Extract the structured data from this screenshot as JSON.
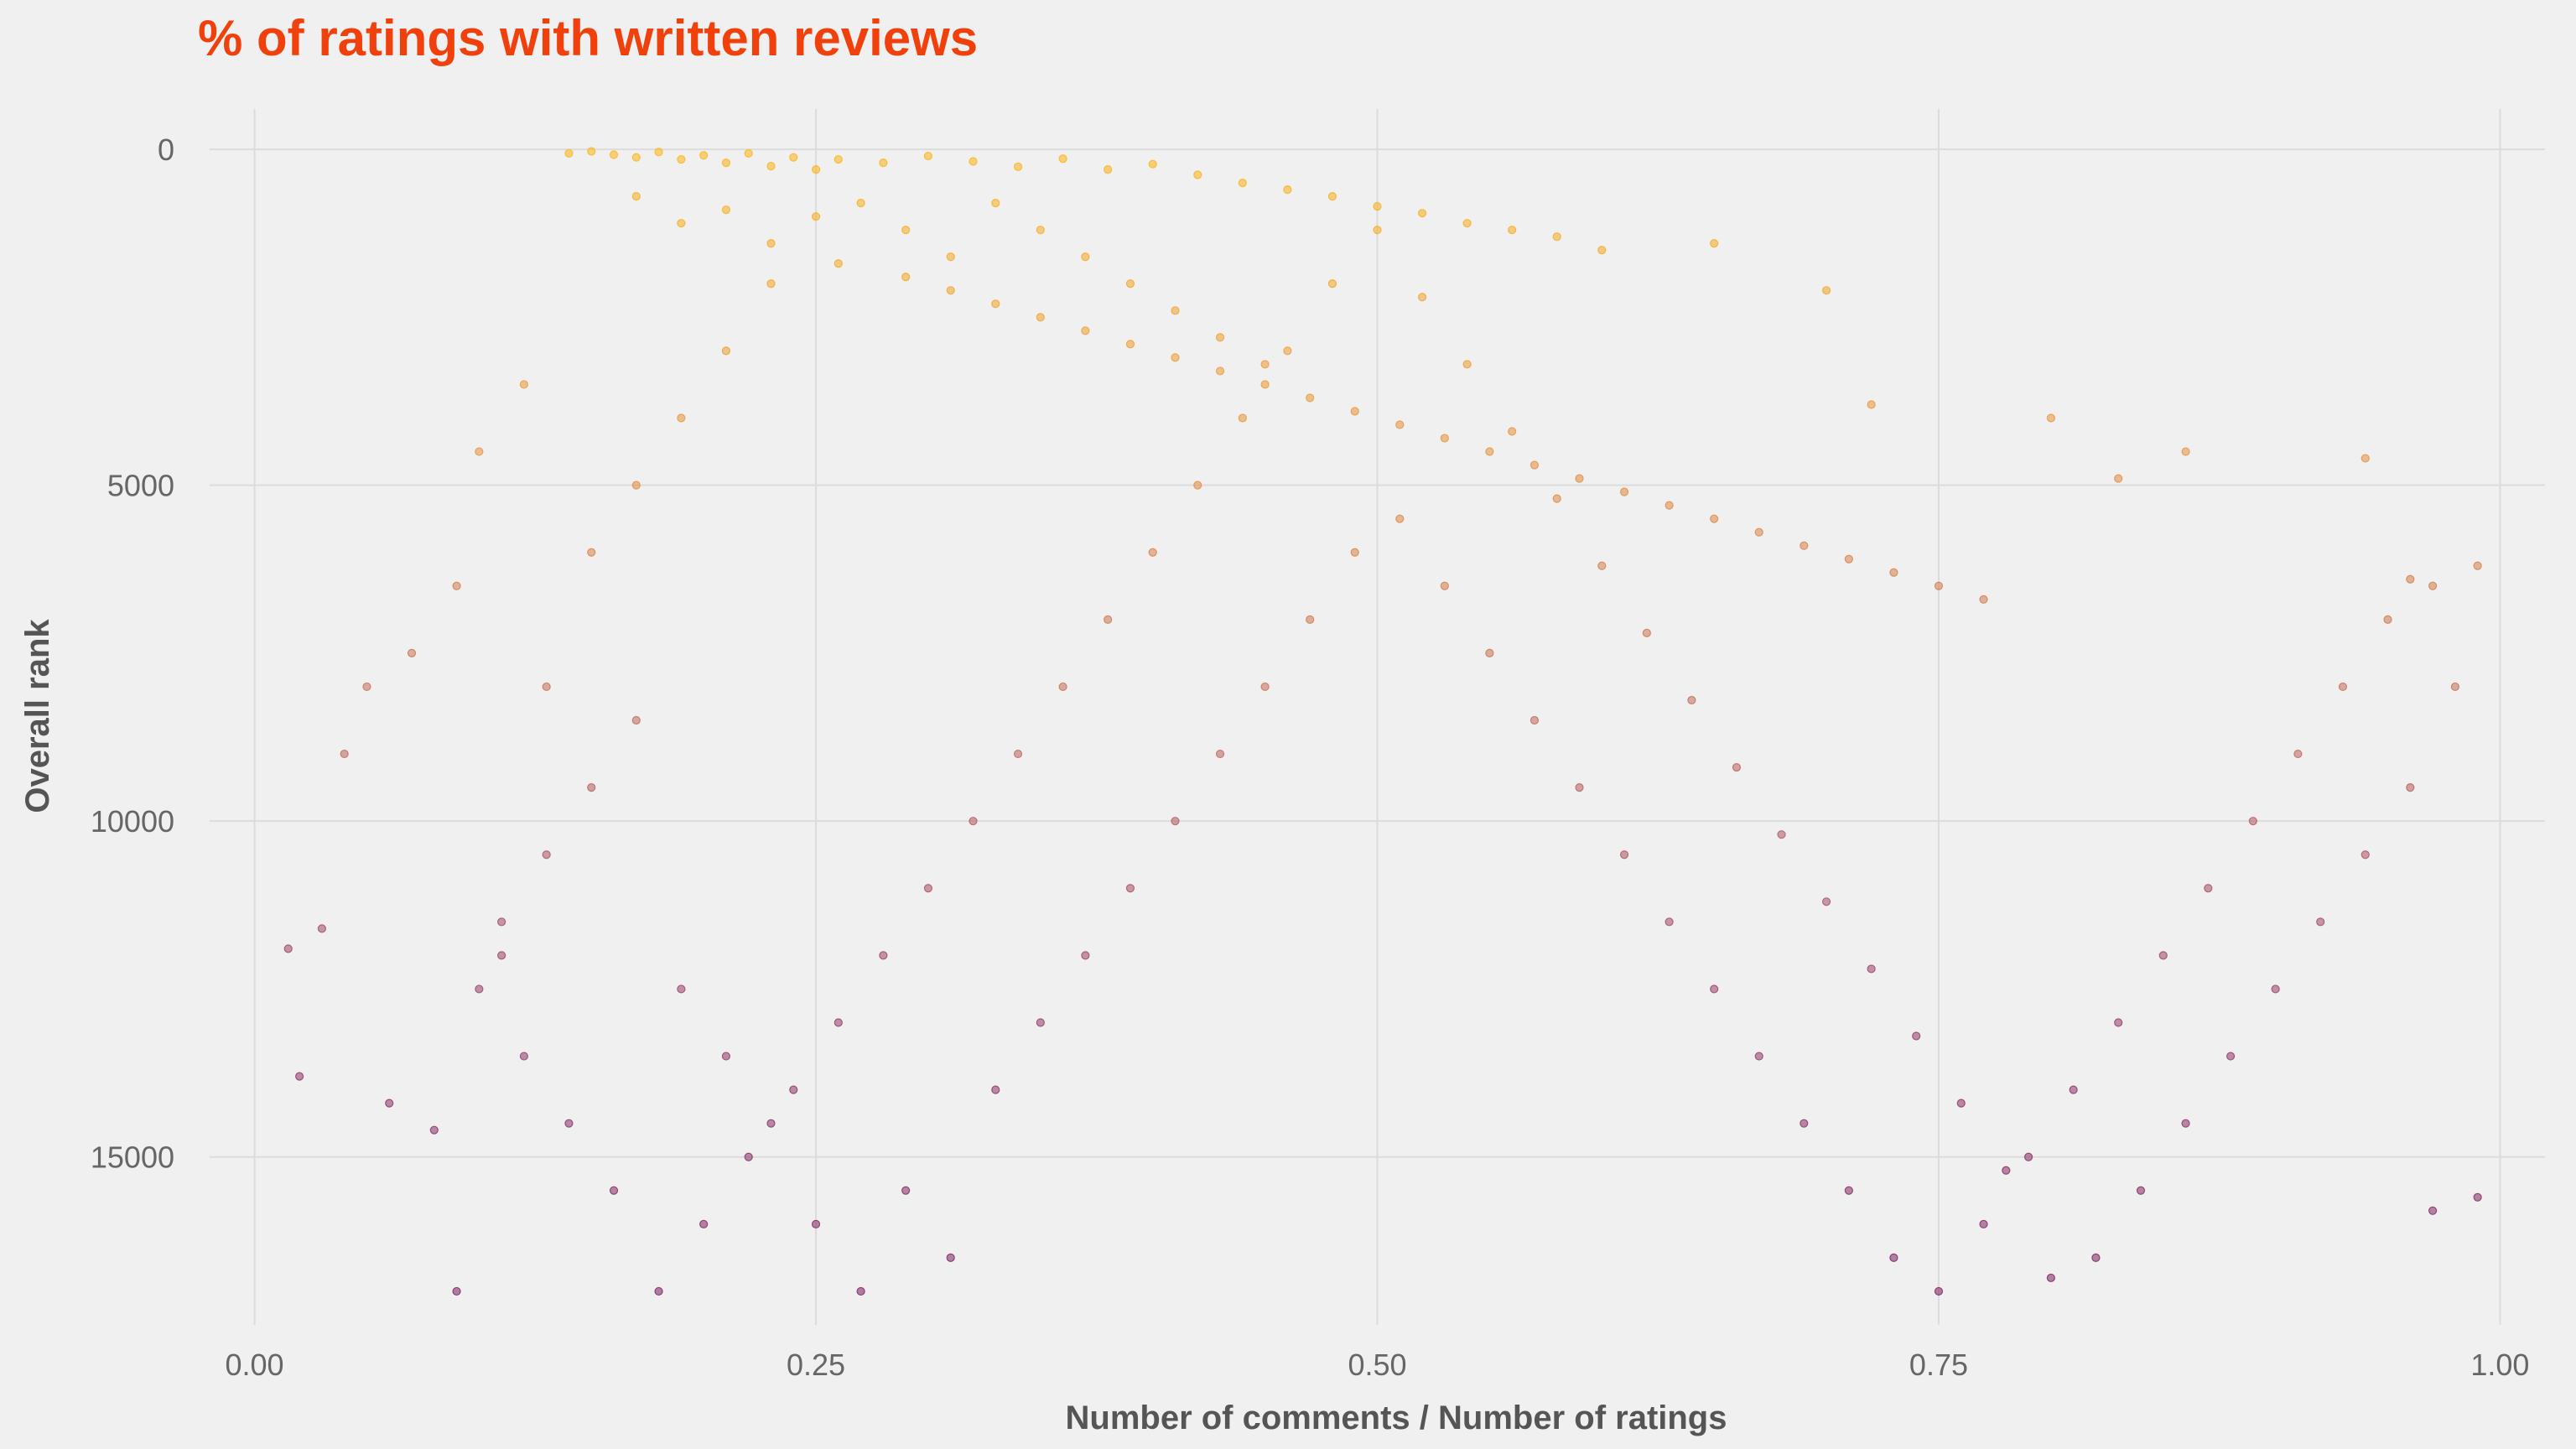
{
  "chart_data": {
    "type": "scatter",
    "title": "% of ratings with written reviews",
    "xlabel": "Number of comments / Number of ratings",
    "ylabel": "Overall rank",
    "xlim": [
      -0.02,
      1.02
    ],
    "ylim": [
      -600,
      17500
    ],
    "y_reversed": true,
    "grid": true,
    "legend": "none",
    "x_ticks": [
      {
        "value": 0.0,
        "label": "0.00"
      },
      {
        "value": 0.25,
        "label": "0.25"
      },
      {
        "value": 0.5,
        "label": "0.50"
      },
      {
        "value": 0.75,
        "label": "0.75"
      },
      {
        "value": 1.0,
        "label": "1.00"
      }
    ],
    "y_ticks": [
      {
        "value": 0,
        "label": "0"
      },
      {
        "value": 5000,
        "label": "5000"
      },
      {
        "value": 10000,
        "label": "10000"
      },
      {
        "value": 15000,
        "label": "15000"
      }
    ],
    "color_scale": [
      "#fdb515",
      "#e8933c",
      "#c06a5a",
      "#963c6a",
      "#7a1e5e"
    ],
    "title_color": "#f0400c",
    "points": [
      [
        0.14,
        60
      ],
      [
        0.15,
        30
      ],
      [
        0.16,
        80
      ],
      [
        0.17,
        120
      ],
      [
        0.18,
        40
      ],
      [
        0.19,
        150
      ],
      [
        0.2,
        90
      ],
      [
        0.21,
        200
      ],
      [
        0.22,
        60
      ],
      [
        0.23,
        250
      ],
      [
        0.24,
        120
      ],
      [
        0.25,
        300
      ],
      [
        0.26,
        150
      ],
      [
        0.28,
        200
      ],
      [
        0.3,
        100
      ],
      [
        0.32,
        180
      ],
      [
        0.34,
        260
      ],
      [
        0.36,
        140
      ],
      [
        0.38,
        300
      ],
      [
        0.4,
        220
      ],
      [
        0.42,
        380
      ],
      [
        0.44,
        500
      ],
      [
        0.46,
        600
      ],
      [
        0.48,
        700
      ],
      [
        0.5,
        850
      ],
      [
        0.52,
        950
      ],
      [
        0.54,
        1100
      ],
      [
        0.56,
        1200
      ],
      [
        0.58,
        1300
      ],
      [
        0.6,
        1500
      ],
      [
        0.17,
        700
      ],
      [
        0.19,
        1100
      ],
      [
        0.21,
        900
      ],
      [
        0.23,
        1400
      ],
      [
        0.26,
        1700
      ],
      [
        0.29,
        1900
      ],
      [
        0.31,
        2100
      ],
      [
        0.33,
        2300
      ],
      [
        0.35,
        2500
      ],
      [
        0.37,
        2700
      ],
      [
        0.39,
        2900
      ],
      [
        0.41,
        3100
      ],
      [
        0.43,
        3300
      ],
      [
        0.45,
        3500
      ],
      [
        0.47,
        3700
      ],
      [
        0.49,
        3900
      ],
      [
        0.51,
        4100
      ],
      [
        0.53,
        4300
      ],
      [
        0.55,
        4500
      ],
      [
        0.57,
        4700
      ],
      [
        0.59,
        4900
      ],
      [
        0.61,
        5100
      ],
      [
        0.63,
        5300
      ],
      [
        0.65,
        5500
      ],
      [
        0.67,
        5700
      ],
      [
        0.69,
        5900
      ],
      [
        0.71,
        6100
      ],
      [
        0.73,
        6300
      ],
      [
        0.75,
        6500
      ],
      [
        0.77,
        6700
      ],
      [
        0.12,
        3500
      ],
      [
        0.1,
        4500
      ],
      [
        0.09,
        6500
      ],
      [
        0.07,
        7500
      ],
      [
        0.05,
        8000
      ],
      [
        0.04,
        9000
      ],
      [
        0.03,
        11600
      ],
      [
        0.02,
        13800
      ],
      [
        0.015,
        11900
      ],
      [
        0.06,
        14200
      ],
      [
        0.08,
        14600
      ],
      [
        0.09,
        17000
      ],
      [
        0.11,
        12000
      ],
      [
        0.13,
        10500
      ],
      [
        0.15,
        9500
      ],
      [
        0.17,
        8500
      ],
      [
        0.19,
        12500
      ],
      [
        0.21,
        13500
      ],
      [
        0.23,
        14500
      ],
      [
        0.25,
        16000
      ],
      [
        0.27,
        17000
      ],
      [
        0.29,
        15500
      ],
      [
        0.31,
        16500
      ],
      [
        0.33,
        14000
      ],
      [
        0.35,
        13000
      ],
      [
        0.37,
        12000
      ],
      [
        0.39,
        11000
      ],
      [
        0.41,
        10000
      ],
      [
        0.43,
        9000
      ],
      [
        0.45,
        8000
      ],
      [
        0.47,
        7000
      ],
      [
        0.49,
        6000
      ],
      [
        0.51,
        5500
      ],
      [
        0.53,
        6500
      ],
      [
        0.55,
        7500
      ],
      [
        0.57,
        8500
      ],
      [
        0.59,
        9500
      ],
      [
        0.61,
        10500
      ],
      [
        0.63,
        11500
      ],
      [
        0.65,
        12500
      ],
      [
        0.67,
        13500
      ],
      [
        0.69,
        14500
      ],
      [
        0.71,
        15500
      ],
      [
        0.73,
        16500
      ],
      [
        0.75,
        17000
      ],
      [
        0.77,
        16000
      ],
      [
        0.79,
        15000
      ],
      [
        0.81,
        14000
      ],
      [
        0.83,
        13000
      ],
      [
        0.85,
        12000
      ],
      [
        0.87,
        11000
      ],
      [
        0.89,
        10000
      ],
      [
        0.91,
        9000
      ],
      [
        0.93,
        8000
      ],
      [
        0.95,
        7000
      ],
      [
        0.97,
        6500
      ],
      [
        0.99,
        6200
      ],
      [
        0.98,
        8000
      ],
      [
        0.96,
        9500
      ],
      [
        0.94,
        10500
      ],
      [
        0.92,
        11500
      ],
      [
        0.9,
        12500
      ],
      [
        0.88,
        13500
      ],
      [
        0.86,
        14500
      ],
      [
        0.84,
        15500
      ],
      [
        0.82,
        16500
      ],
      [
        0.8,
        16800
      ],
      [
        0.78,
        15200
      ],
      [
        0.76,
        14200
      ],
      [
        0.74,
        13200
      ],
      [
        0.72,
        12200
      ],
      [
        0.7,
        11200
      ],
      [
        0.68,
        10200
      ],
      [
        0.66,
        9200
      ],
      [
        0.64,
        8200
      ],
      [
        0.62,
        7200
      ],
      [
        0.6,
        6200
      ],
      [
        0.58,
        5200
      ],
      [
        0.56,
        4200
      ],
      [
        0.54,
        3200
      ],
      [
        0.52,
        2200
      ],
      [
        0.5,
        1200
      ],
      [
        0.48,
        2000
      ],
      [
        0.46,
        3000
      ],
      [
        0.44,
        4000
      ],
      [
        0.42,
        5000
      ],
      [
        0.4,
        6000
      ],
      [
        0.38,
        7000
      ],
      [
        0.36,
        8000
      ],
      [
        0.34,
        9000
      ],
      [
        0.32,
        10000
      ],
      [
        0.3,
        11000
      ],
      [
        0.28,
        12000
      ],
      [
        0.26,
        13000
      ],
      [
        0.24,
        14000
      ],
      [
        0.22,
        15000
      ],
      [
        0.2,
        16000
      ],
      [
        0.18,
        17000
      ],
      [
        0.16,
        15500
      ],
      [
        0.14,
        14500
      ],
      [
        0.12,
        13500
      ],
      [
        0.1,
        12500
      ],
      [
        0.11,
        11500
      ],
      [
        0.13,
        8000
      ],
      [
        0.15,
        6000
      ],
      [
        0.17,
        5000
      ],
      [
        0.19,
        4000
      ],
      [
        0.21,
        3000
      ],
      [
        0.23,
        2000
      ],
      [
        0.25,
        1000
      ],
      [
        0.27,
        800
      ],
      [
        0.29,
        1200
      ],
      [
        0.31,
        1600
      ],
      [
        0.33,
        800
      ],
      [
        0.35,
        1200
      ],
      [
        0.37,
        1600
      ],
      [
        0.39,
        2000
      ],
      [
        0.41,
        2400
      ],
      [
        0.43,
        2800
      ],
      [
        0.45,
        3200
      ],
      [
        0.65,
        1400
      ],
      [
        0.7,
        2100
      ],
      [
        0.72,
        3800
      ],
      [
        0.8,
        4000
      ],
      [
        0.83,
        4900
      ],
      [
        0.86,
        4500
      ],
      [
        0.94,
        4600
      ],
      [
        0.96,
        6400
      ],
      [
        0.99,
        15600
      ],
      [
        0.97,
        15800
      ]
    ]
  }
}
